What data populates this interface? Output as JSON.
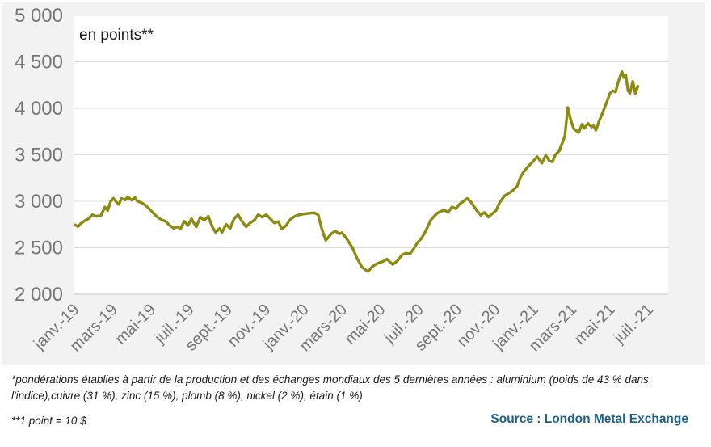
{
  "chart_data": {
    "type": "line",
    "title": "en points**",
    "xlabel": "",
    "ylabel": "",
    "xlim_months": [
      0,
      31
    ],
    "ylim": [
      2000,
      5000
    ],
    "grid": "horizontal",
    "legend": "none",
    "x_tick_labels": [
      "janv.-19",
      "mars-19",
      "mai-19",
      "juil.-19",
      "sept.-19",
      "nov.-19",
      "janv.-20",
      "mars-20",
      "mai-20",
      "juil.-20",
      "sept.-20",
      "nov.-20",
      "janv.-21",
      "mars-21",
      "mai-21",
      "juil.-21"
    ],
    "x_tick_month_positions": [
      0,
      2,
      4,
      6,
      8,
      10,
      12,
      14,
      16,
      18,
      20,
      22,
      24,
      26,
      28,
      30
    ],
    "y_ticks": [
      {
        "value": 2000,
        "label": "2 000"
      },
      {
        "value": 2500,
        "label": "2 500"
      },
      {
        "value": 3000,
        "label": "3 000"
      },
      {
        "value": 3500,
        "label": "3 500"
      },
      {
        "value": 4000,
        "label": "4 000"
      },
      {
        "value": 4500,
        "label": "4 500"
      },
      {
        "value": 5000,
        "label": "5 000"
      }
    ],
    "colors": {
      "line": "#8b8b10",
      "grid": "#dcdcdc",
      "axis_line": "#c8c8c8",
      "axis_text": "#767676",
      "title_text": "#1a1a1a",
      "plot_bg": "#ffffff",
      "panel_bg": "#f2f2f2"
    },
    "points": [
      [
        0.0,
        2745
      ],
      [
        0.15,
        2728
      ],
      [
        0.3,
        2762
      ],
      [
        0.5,
        2790
      ],
      [
        0.7,
        2812
      ],
      [
        0.9,
        2855
      ],
      [
        1.1,
        2838
      ],
      [
        1.35,
        2848
      ],
      [
        1.56,
        2938
      ],
      [
        1.7,
        2900
      ],
      [
        1.86,
        3000
      ],
      [
        2.0,
        3032
      ],
      [
        2.12,
        3000
      ],
      [
        2.28,
        2965
      ],
      [
        2.42,
        3030
      ],
      [
        2.62,
        3015
      ],
      [
        2.76,
        3046
      ],
      [
        2.96,
        3012
      ],
      [
        3.12,
        3040
      ],
      [
        3.26,
        3000
      ],
      [
        3.46,
        2985
      ],
      [
        3.67,
        2958
      ],
      [
        3.88,
        2917
      ],
      [
        4.1,
        2870
      ],
      [
        4.3,
        2830
      ],
      [
        4.52,
        2800
      ],
      [
        4.72,
        2786
      ],
      [
        4.94,
        2740
      ],
      [
        5.15,
        2710
      ],
      [
        5.36,
        2726
      ],
      [
        5.5,
        2700
      ],
      [
        5.7,
        2786
      ],
      [
        5.9,
        2740
      ],
      [
        6.08,
        2812
      ],
      [
        6.2,
        2768
      ],
      [
        6.33,
        2725
      ],
      [
        6.54,
        2830
      ],
      [
        6.75,
        2795
      ],
      [
        6.96,
        2839
      ],
      [
        7.17,
        2725
      ],
      [
        7.34,
        2665
      ],
      [
        7.55,
        2708
      ],
      [
        7.68,
        2665
      ],
      [
        7.89,
        2752
      ],
      [
        8.1,
        2708
      ],
      [
        8.31,
        2812
      ],
      [
        8.52,
        2856
      ],
      [
        8.73,
        2782
      ],
      [
        8.94,
        2725
      ],
      [
        9.15,
        2768
      ],
      [
        9.36,
        2795
      ],
      [
        9.57,
        2856
      ],
      [
        9.78,
        2830
      ],
      [
        9.99,
        2856
      ],
      [
        10.2,
        2812
      ],
      [
        10.41,
        2768
      ],
      [
        10.62,
        2782
      ],
      [
        10.8,
        2700
      ],
      [
        11.04,
        2742
      ],
      [
        11.2,
        2795
      ],
      [
        11.41,
        2830
      ],
      [
        11.6,
        2850
      ],
      [
        11.9,
        2862
      ],
      [
        12.2,
        2870
      ],
      [
        12.5,
        2876
      ],
      [
        12.7,
        2856
      ],
      [
        12.9,
        2700
      ],
      [
        13.1,
        2580
      ],
      [
        13.4,
        2652
      ],
      [
        13.6,
        2680
      ],
      [
        13.8,
        2650
      ],
      [
        13.95,
        2662
      ],
      [
        14.2,
        2595
      ],
      [
        14.5,
        2500
      ],
      [
        14.75,
        2380
      ],
      [
        15.0,
        2290
      ],
      [
        15.2,
        2258
      ],
      [
        15.32,
        2245
      ],
      [
        15.5,
        2290
      ],
      [
        15.7,
        2320
      ],
      [
        15.9,
        2340
      ],
      [
        16.1,
        2352
      ],
      [
        16.3,
        2378
      ],
      [
        16.6,
        2320
      ],
      [
        16.85,
        2360
      ],
      [
        17.1,
        2425
      ],
      [
        17.3,
        2442
      ],
      [
        17.5,
        2435
      ],
      [
        17.7,
        2490
      ],
      [
        17.9,
        2556
      ],
      [
        18.1,
        2600
      ],
      [
        18.3,
        2670
      ],
      [
        18.6,
        2800
      ],
      [
        18.9,
        2868
      ],
      [
        19.1,
        2890
      ],
      [
        19.3,
        2905
      ],
      [
        19.5,
        2880
      ],
      [
        19.7,
        2940
      ],
      [
        19.9,
        2920
      ],
      [
        20.1,
        2970
      ],
      [
        20.5,
        3030
      ],
      [
        20.7,
        2990
      ],
      [
        21.0,
        2900
      ],
      [
        21.2,
        2850
      ],
      [
        21.4,
        2880
      ],
      [
        21.6,
        2830
      ],
      [
        21.8,
        2865
      ],
      [
        22.0,
        2900
      ],
      [
        22.2,
        2990
      ],
      [
        22.45,
        3060
      ],
      [
        22.7,
        3090
      ],
      [
        22.9,
        3120
      ],
      [
        23.1,
        3160
      ],
      [
        23.3,
        3270
      ],
      [
        23.5,
        3330
      ],
      [
        23.7,
        3380
      ],
      [
        23.9,
        3420
      ],
      [
        24.15,
        3480
      ],
      [
        24.4,
        3410
      ],
      [
        24.6,
        3495
      ],
      [
        24.8,
        3430
      ],
      [
        24.95,
        3425
      ],
      [
        25.1,
        3500
      ],
      [
        25.3,
        3540
      ],
      [
        25.45,
        3620
      ],
      [
        25.6,
        3700
      ],
      [
        25.75,
        4010
      ],
      [
        25.9,
        3880
      ],
      [
        26.05,
        3784
      ],
      [
        26.2,
        3758
      ],
      [
        26.32,
        3740
      ],
      [
        26.5,
        3828
      ],
      [
        26.62,
        3784
      ],
      [
        26.8,
        3837
      ],
      [
        27.0,
        3800
      ],
      [
        27.1,
        3812
      ],
      [
        27.22,
        3765
      ],
      [
        27.4,
        3870
      ],
      [
        27.55,
        3940
      ],
      [
        27.75,
        4045
      ],
      [
        27.95,
        4158
      ],
      [
        28.1,
        4190
      ],
      [
        28.25,
        4176
      ],
      [
        28.4,
        4290
      ],
      [
        28.58,
        4395
      ],
      [
        28.68,
        4330
      ],
      [
        28.78,
        4358
      ],
      [
        28.9,
        4190
      ],
      [
        29.0,
        4162
      ],
      [
        29.15,
        4290
      ],
      [
        29.28,
        4160
      ],
      [
        29.42,
        4238
      ]
    ]
  },
  "footnotes": {
    "line1": "*pondérations établies à partir de la production et des échanges mondiaux des 5 dernières années : aluminium (poids de 43 % dans",
    "line2": "l'indice),cuivre (31 %), zinc (15 %), plomb (8 %), nickel (2 %), étain (1 %)",
    "point_note": "**1 point = 10 $",
    "source": "Source : London Metal Exchange",
    "source_color": "#1d6189"
  }
}
